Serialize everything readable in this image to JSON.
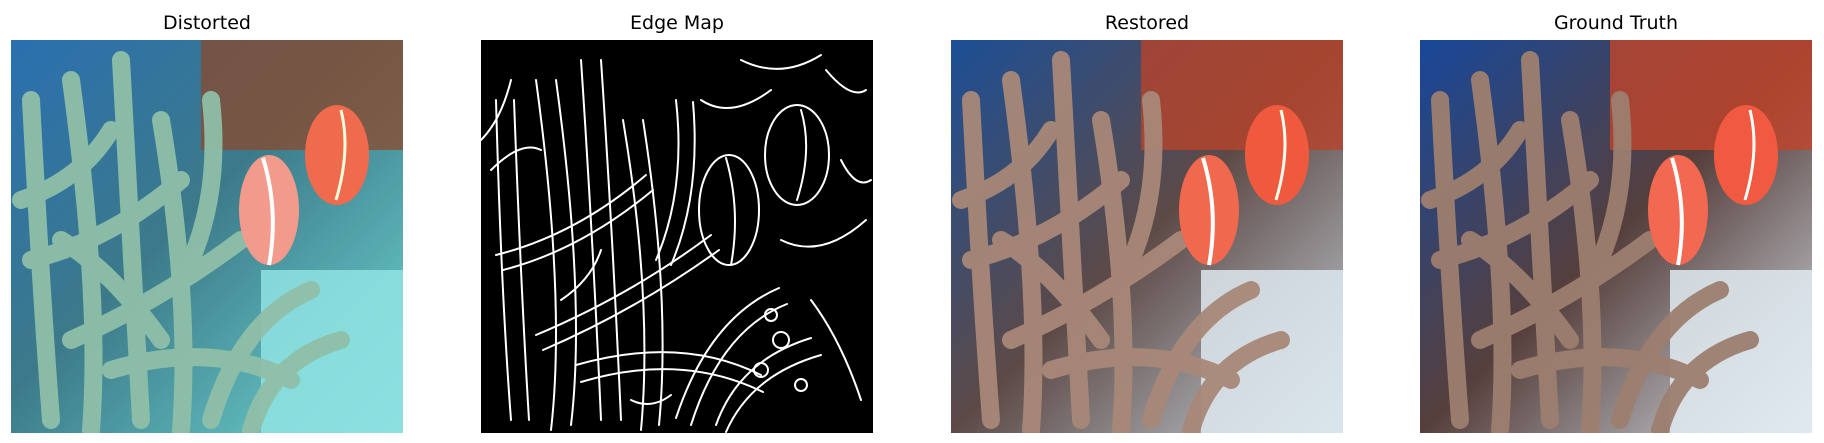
{
  "panels": [
    {
      "title": "Distorted"
    },
    {
      "title": "Edge Map"
    },
    {
      "title": "Restored"
    },
    {
      "title": "Ground Truth"
    }
  ],
  "colors": {
    "water_blue": "#1c4f96",
    "reef_red": "#b8442a",
    "fish_orange": "#ef5a3f",
    "fish_pink": "#f19a8a",
    "tentacle_green": "#8fb9a9",
    "tentacle_brown": "#9d7f6f",
    "sand_cyan": "#7fe2e0",
    "sand_white": "#dde8ee",
    "edge_line": "#ffffff",
    "edge_bg": "#000000"
  },
  "icons": [
    "distorted-photo",
    "edge-map-image",
    "restored-photo",
    "ground-truth-photo"
  ]
}
